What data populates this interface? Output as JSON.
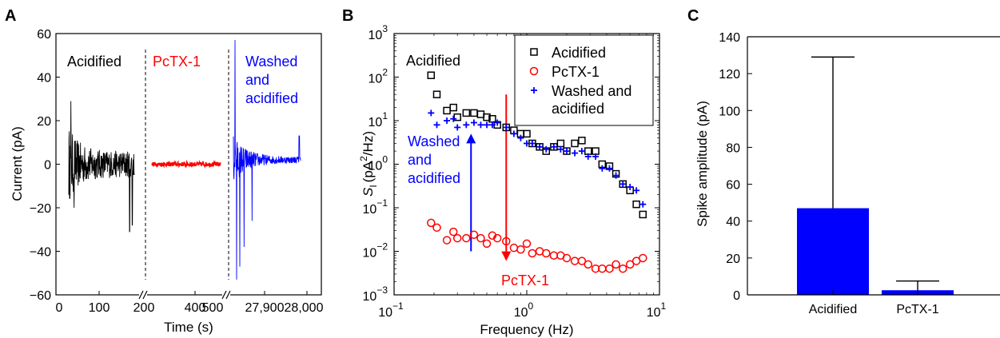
{
  "panels": [
    {
      "id": "A",
      "letter": "A"
    },
    {
      "id": "B",
      "letter": "B"
    },
    {
      "id": "C",
      "letter": "C"
    }
  ],
  "chart_data": [
    {
      "panel": "A",
      "type": "line",
      "xlabel": "Time (s)",
      "ylabel": "Current (pA)",
      "ylim": [
        -60,
        60
      ],
      "yticks": [
        -60,
        -40,
        -20,
        0,
        20,
        40,
        60
      ],
      "xticks": [
        "0",
        "100",
        "200",
        "400",
        "500",
        "27,900",
        "28,000"
      ],
      "annotations": [
        {
          "text": "Acidified",
          "color": "#000000"
        },
        {
          "text": "PcTX-1",
          "color": "#ff0000"
        },
        {
          "text": "Washed",
          "color": "#0000ff"
        },
        {
          "text": "and",
          "color": "#0000ff"
        },
        {
          "text": "acidified",
          "color": "#0000ff"
        }
      ],
      "segments": [
        {
          "label": "Acidified",
          "color": "#000000",
          "baseline": 0,
          "peak_max": 29,
          "peak_min": -31
        },
        {
          "label": "PcTX-1",
          "color": "#ff0000",
          "baseline": 0,
          "peak_max": 1,
          "peak_min": -1
        },
        {
          "label": "Washed and acidified",
          "color": "#0000ff",
          "baseline": 0,
          "peak_max": 57,
          "peak_min": -53
        }
      ]
    },
    {
      "panel": "B",
      "type": "scatter",
      "log_x": true,
      "log_y": true,
      "xlabel": "Frequency (Hz)",
      "ylabel_symbol": "S",
      "ylabel_sub": "I",
      "ylabel_units_open": "(pA",
      "ylabel_units_sup": "2",
      "ylabel_units_close": "/Hz)",
      "xlim": [
        0.1,
        10
      ],
      "ylim": [
        0.001,
        1000
      ],
      "xticks": [
        {
          "base": "10",
          "exp": "−1",
          "value": 0.1
        },
        {
          "base": "10",
          "exp": "0",
          "value": 1
        },
        {
          "base": "10",
          "exp": "1",
          "value": 10
        }
      ],
      "yticks": [
        {
          "base": "10",
          "exp": "−3",
          "value": 0.001
        },
        {
          "base": "10",
          "exp": "−2",
          "value": 0.01
        },
        {
          "base": "10",
          "exp": "−1",
          "value": 0.1
        },
        {
          "base": "10",
          "exp": "0",
          "value": 1
        },
        {
          "base": "10",
          "exp": "1",
          "value": 10
        },
        {
          "base": "10",
          "exp": "2",
          "value": 100
        },
        {
          "base": "10",
          "exp": "3",
          "value": 1000
        }
      ],
      "legend_placement": "top-right",
      "annotations": [
        {
          "text": "Acidified",
          "color": "#000000"
        },
        {
          "text": "Washed",
          "color": "#0000ff"
        },
        {
          "text": "and",
          "color": "#0000ff"
        },
        {
          "text": "acidified",
          "color": "#0000ff"
        },
        {
          "text": "PcTX-1",
          "color": "#ff0000"
        }
      ],
      "series": [
        {
          "name": "Acidified",
          "marker": "square",
          "color": "#000000",
          "legend_lines": [
            "Acidified"
          ],
          "x": [
            0.19,
            0.21,
            0.25,
            0.28,
            0.3,
            0.35,
            0.4,
            0.45,
            0.5,
            0.55,
            0.6,
            0.7,
            0.8,
            0.9,
            1.0,
            1.1,
            1.25,
            1.4,
            1.6,
            1.8,
            2.0,
            2.3,
            2.6,
            2.9,
            3.3,
            3.7,
            4.2,
            4.7,
            5.3,
            6.0,
            6.7,
            7.5
          ],
          "y": [
            110,
            40,
            17,
            20,
            12,
            15,
            15,
            14,
            12,
            11,
            8,
            7,
            6,
            5,
            5,
            3,
            2.5,
            2,
            2.5,
            3,
            2,
            3,
            3.5,
            2,
            2,
            1,
            0.9,
            0.6,
            0.35,
            0.25,
            0.12,
            0.07
          ]
        },
        {
          "name": "PcTX-1",
          "marker": "circle",
          "color": "#ff0000",
          "legend_lines": [
            "PcTX-1"
          ],
          "x": [
            0.19,
            0.21,
            0.25,
            0.28,
            0.3,
            0.35,
            0.4,
            0.45,
            0.5,
            0.55,
            0.6,
            0.7,
            0.8,
            0.9,
            1.0,
            1.1,
            1.25,
            1.4,
            1.6,
            1.8,
            2.0,
            2.3,
            2.6,
            2.9,
            3.3,
            3.7,
            4.2,
            4.7,
            5.3,
            6.0,
            6.7,
            7.5
          ],
          "y": [
            0.045,
            0.035,
            0.018,
            0.028,
            0.02,
            0.02,
            0.024,
            0.02,
            0.015,
            0.023,
            0.02,
            0.017,
            0.012,
            0.011,
            0.015,
            0.009,
            0.01,
            0.009,
            0.008,
            0.008,
            0.007,
            0.006,
            0.006,
            0.005,
            0.004,
            0.004,
            0.004,
            0.005,
            0.004,
            0.005,
            0.006,
            0.007
          ]
        },
        {
          "name": "Washed and acidified",
          "marker": "plus",
          "color": "#0000ff",
          "legend_lines": [
            "Washed and",
            "acidified"
          ],
          "x": [
            0.19,
            0.21,
            0.25,
            0.28,
            0.3,
            0.35,
            0.4,
            0.45,
            0.5,
            0.55,
            0.6,
            0.7,
            0.8,
            0.9,
            1.0,
            1.1,
            1.25,
            1.4,
            1.6,
            1.8,
            2.0,
            2.3,
            2.6,
            2.9,
            3.3,
            3.7,
            4.2,
            4.7,
            5.3,
            6.0,
            6.7,
            7.5
          ],
          "y": [
            15,
            8,
            10,
            11,
            7,
            8,
            9,
            8,
            8,
            8,
            9,
            7,
            5,
            4,
            3,
            3,
            2.5,
            2.2,
            2.5,
            2.2,
            2,
            1.8,
            2,
            1.5,
            1.5,
            0.8,
            0.8,
            0.55,
            0.35,
            0.3,
            0.25,
            0.12
          ]
        }
      ],
      "arrows": [
        {
          "color": "#0000ff",
          "x": 0.38,
          "from": 0.01,
          "to": 5,
          "direction": "up"
        },
        {
          "color": "#ff0000",
          "x": 0.7,
          "from": 40,
          "to": 0.006,
          "direction": "down"
        }
      ]
    },
    {
      "panel": "C",
      "type": "bar",
      "ylabel": "Spike amplitude (pA)",
      "xlabel": "",
      "ylim": [
        0,
        140
      ],
      "yticks": [
        0,
        20,
        40,
        60,
        80,
        100,
        120,
        140
      ],
      "categories": [
        "Acidified",
        "PcTX-1"
      ],
      "values": [
        47,
        2.5
      ],
      "error_upper": [
        129,
        7.5
      ],
      "bar_color": "#0000ff"
    }
  ]
}
